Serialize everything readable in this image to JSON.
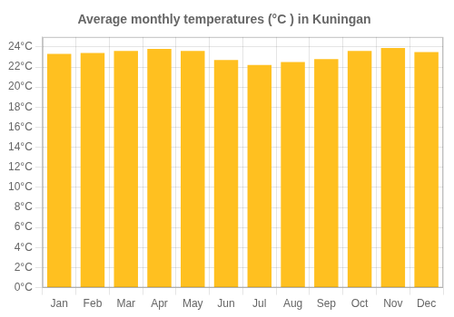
{
  "chart_data": {
    "type": "bar",
    "title": "Average monthly temperatures (°C ) in Kuningan",
    "categories": [
      "Jan",
      "Feb",
      "Mar",
      "Apr",
      "May",
      "Jun",
      "Jul",
      "Aug",
      "Sep",
      "Oct",
      "Nov",
      "Dec"
    ],
    "values": [
      23.3,
      23.4,
      23.6,
      23.8,
      23.6,
      22.7,
      22.2,
      22.5,
      22.8,
      23.6,
      23.9,
      23.5
    ],
    "color": "#FFC020",
    "ylim": [
      0,
      25
    ],
    "yticks": [
      {
        "value": 0,
        "label": "0°C"
      },
      {
        "value": 2,
        "label": "2°C"
      },
      {
        "value": 4,
        "label": "4°C"
      },
      {
        "value": 6,
        "label": "6°C"
      },
      {
        "value": 8,
        "label": "8°C"
      },
      {
        "value": 10,
        "label": "10°C"
      },
      {
        "value": 12,
        "label": "12°C"
      },
      {
        "value": 14,
        "label": "14°C"
      },
      {
        "value": 16,
        "label": "16°C"
      },
      {
        "value": 18,
        "label": "18°C"
      },
      {
        "value": 20,
        "label": "20°C"
      },
      {
        "value": 22,
        "label": "22°C"
      },
      {
        "value": 24,
        "label": "24°C"
      }
    ],
    "grid": true
  }
}
